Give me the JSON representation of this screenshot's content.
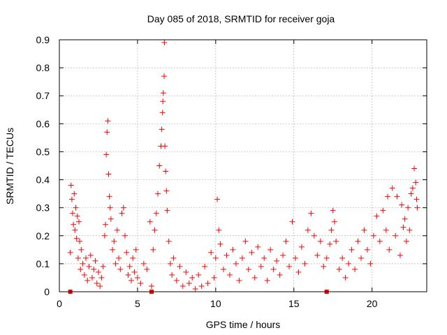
{
  "chart_data": {
    "type": "scatter",
    "title": "Day 085 of 2018, SRMTID for receiver goja",
    "xlabel": "GPS time / hours",
    "ylabel": "SRMTID / TECUs",
    "xlim": [
      0,
      23.5
    ],
    "ylim": [
      0,
      0.9
    ],
    "x_ticks": [
      0,
      5,
      10,
      15,
      20
    ],
    "x_tick_labels": [
      "0",
      "5",
      "10",
      "15",
      "20"
    ],
    "y_ticks": [
      0,
      0.1,
      0.2,
      0.3,
      0.4,
      0.5,
      0.6,
      0.7,
      0.8,
      0.9
    ],
    "y_tick_labels": [
      "0",
      "0.1",
      "0.2",
      "0.3",
      "0.4",
      "0.5",
      "0.6",
      "0.7",
      "0.8",
      "0.9"
    ],
    "grid": true,
    "marker": "+",
    "color": "#ff0000",
    "series": [
      {
        "name": "SRMTID",
        "points": [
          [
            0.7,
            0.14
          ],
          [
            0.75,
            0.38
          ],
          [
            0.8,
            0.33
          ],
          [
            0.85,
            0.28
          ],
          [
            0.9,
            0.24
          ],
          [
            0.95,
            0.35
          ],
          [
            1.0,
            0.22
          ],
          [
            1.05,
            0.3
          ],
          [
            1.1,
            0.19
          ],
          [
            1.15,
            0.27
          ],
          [
            1.2,
            0.12
          ],
          [
            1.25,
            0.25
          ],
          [
            1.3,
            0.18
          ],
          [
            1.35,
            0.08
          ],
          [
            1.4,
            0.15
          ],
          [
            1.5,
            0.1
          ],
          [
            1.6,
            0.06
          ],
          [
            1.7,
            0.12
          ],
          [
            1.8,
            0.04
          ],
          [
            1.9,
            0.09
          ],
          [
            2.0,
            0.13
          ],
          [
            2.1,
            0.05
          ],
          [
            2.2,
            0.08
          ],
          [
            2.3,
            0.11
          ],
          [
            2.4,
            0.03
          ],
          [
            2.5,
            0.07
          ],
          [
            2.6,
            0.02
          ],
          [
            2.7,
            0.05
          ],
          [
            2.8,
            0.09
          ],
          [
            2.9,
            0.2
          ],
          [
            2.95,
            0.24
          ],
          [
            3.0,
            0.49
          ],
          [
            3.05,
            0.57
          ],
          [
            3.1,
            0.61
          ],
          [
            3.15,
            0.42
          ],
          [
            3.2,
            0.34
          ],
          [
            3.25,
            0.3
          ],
          [
            3.3,
            0.26
          ],
          [
            3.4,
            0.15
          ],
          [
            3.5,
            0.18
          ],
          [
            3.6,
            0.1
          ],
          [
            3.7,
            0.22
          ],
          [
            3.8,
            0.12
          ],
          [
            3.9,
            0.08
          ],
          [
            4.0,
            0.28
          ],
          [
            4.1,
            0.3
          ],
          [
            4.2,
            0.2
          ],
          [
            4.3,
            0.14
          ],
          [
            4.4,
            0.06
          ],
          [
            4.5,
            0.09
          ],
          [
            4.6,
            0.04
          ],
          [
            4.7,
            0.12
          ],
          [
            4.8,
            0.07
          ],
          [
            4.9,
            0.15
          ],
          [
            5.0,
            0.05
          ],
          [
            5.2,
            0.03
          ],
          [
            5.4,
            0.1
          ],
          [
            5.6,
            0.08
          ],
          [
            5.8,
            0.25
          ],
          [
            5.9,
            0.02
          ],
          [
            6.0,
            0.15
          ],
          [
            6.1,
            0.22
          ],
          [
            6.2,
            0.28
          ],
          [
            6.3,
            0.35
          ],
          [
            6.4,
            0.45
          ],
          [
            6.5,
            0.52
          ],
          [
            6.55,
            0.58
          ],
          [
            6.6,
            0.64
          ],
          [
            6.62,
            0.68
          ],
          [
            6.65,
            0.71
          ],
          [
            6.7,
            0.77
          ],
          [
            6.72,
            0.89
          ],
          [
            6.75,
            0.52
          ],
          [
            6.8,
            0.43
          ],
          [
            6.85,
            0.36
          ],
          [
            6.9,
            0.29
          ],
          [
            7.0,
            0.18
          ],
          [
            7.1,
            0.1
          ],
          [
            7.2,
            0.06
          ],
          [
            7.3,
            0.12
          ],
          [
            7.5,
            0.04
          ],
          [
            7.7,
            0.09
          ],
          [
            7.9,
            0.02
          ],
          [
            8.1,
            0.07
          ],
          [
            8.3,
            0.03
          ],
          [
            8.5,
            0.05
          ],
          [
            8.7,
            0.01
          ],
          [
            8.9,
            0.06
          ],
          [
            9.1,
            0.02
          ],
          [
            9.3,
            0.09
          ],
          [
            9.5,
            0.03
          ],
          [
            9.7,
            0.14
          ],
          [
            9.9,
            0.05
          ],
          [
            10.0,
            0.12
          ],
          [
            10.1,
            0.33
          ],
          [
            10.2,
            0.22
          ],
          [
            10.3,
            0.17
          ],
          [
            10.5,
            0.08
          ],
          [
            10.7,
            0.13
          ],
          [
            10.9,
            0.06
          ],
          [
            11.1,
            0.15
          ],
          [
            11.3,
            0.1
          ],
          [
            11.5,
            0.04
          ],
          [
            11.7,
            0.12
          ],
          [
            11.9,
            0.18
          ],
          [
            12.1,
            0.08
          ],
          [
            12.3,
            0.14
          ],
          [
            12.5,
            0.05
          ],
          [
            12.7,
            0.16
          ],
          [
            12.9,
            0.09
          ],
          [
            13.1,
            0.12
          ],
          [
            13.3,
            0.04
          ],
          [
            13.5,
            0.15
          ],
          [
            13.7,
            0.08
          ],
          [
            13.9,
            0.11
          ],
          [
            14.1,
            0.06
          ],
          [
            14.3,
            0.13
          ],
          [
            14.5,
            0.18
          ],
          [
            14.7,
            0.09
          ],
          [
            14.9,
            0.25
          ],
          [
            15.1,
            0.12
          ],
          [
            15.3,
            0.07
          ],
          [
            15.5,
            0.16
          ],
          [
            15.7,
            0.1
          ],
          [
            15.9,
            0.22
          ],
          [
            16.1,
            0.28
          ],
          [
            16.3,
            0.2
          ],
          [
            16.5,
            0.13
          ],
          [
            16.7,
            0.18
          ],
          [
            16.9,
            0.09
          ],
          [
            17.1,
            0.12
          ],
          [
            17.3,
            0.17
          ],
          [
            17.4,
            0.22
          ],
          [
            17.5,
            0.29
          ],
          [
            17.6,
            0.25
          ],
          [
            17.7,
            0.18
          ],
          [
            17.9,
            0.08
          ],
          [
            18.1,
            0.12
          ],
          [
            18.3,
            0.05
          ],
          [
            18.5,
            0.1
          ],
          [
            18.7,
            0.15
          ],
          [
            18.9,
            0.08
          ],
          [
            19.1,
            0.18
          ],
          [
            19.3,
            0.12
          ],
          [
            19.5,
            0.22
          ],
          [
            19.7,
            0.15
          ],
          [
            19.9,
            0.1
          ],
          [
            20.1,
            0.2
          ],
          [
            20.3,
            0.27
          ],
          [
            20.5,
            0.18
          ],
          [
            20.7,
            0.29
          ],
          [
            20.9,
            0.22
          ],
          [
            21.0,
            0.34
          ],
          [
            21.1,
            0.15
          ],
          [
            21.3,
            0.37
          ],
          [
            21.5,
            0.2
          ],
          [
            21.6,
            0.34
          ],
          [
            21.8,
            0.13
          ],
          [
            21.9,
            0.31
          ],
          [
            22.0,
            0.23
          ],
          [
            22.1,
            0.26
          ],
          [
            22.2,
            0.18
          ],
          [
            22.3,
            0.3
          ],
          [
            22.4,
            0.22
          ],
          [
            22.5,
            0.35
          ],
          [
            22.6,
            0.37
          ],
          [
            22.7,
            0.44
          ],
          [
            22.8,
            0.39
          ],
          [
            22.85,
            0.33
          ],
          [
            22.9,
            0.3
          ]
        ]
      }
    ],
    "square_markers": [
      {
        "x": 0.7,
        "y": 0
      },
      {
        "x": 5.9,
        "y": 0
      },
      {
        "x": 17.1,
        "y": 0
      }
    ]
  }
}
